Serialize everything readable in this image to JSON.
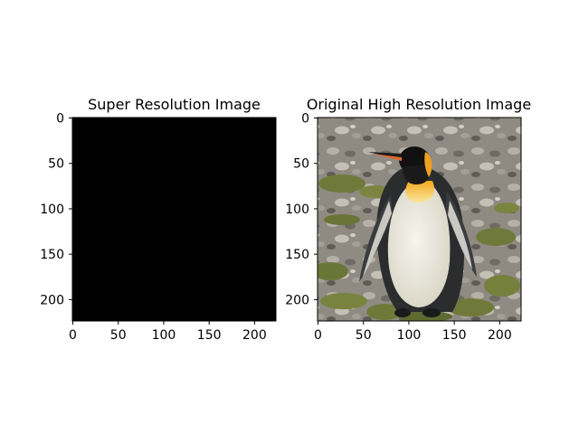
{
  "figure": {
    "background": "#ffffff"
  },
  "chart_data": [
    {
      "type": "image",
      "title": "Super Resolution Image",
      "content": "solid black",
      "fill_color": "#000000",
      "xlim": [
        0,
        224
      ],
      "ylim": [
        224,
        0
      ],
      "x_ticks": [
        0,
        50,
        100,
        150,
        200
      ],
      "y_ticks": [
        0,
        50,
        100,
        150,
        200
      ]
    },
    {
      "type": "image",
      "title": "Original High Resolution Image",
      "content": "photograph of a king penguin standing on rocky ground with grass patches",
      "colors": {
        "rocks": "#9c9890",
        "grass": "#6f7a3a",
        "penguin_back": "#2a2c2e",
        "penguin_belly": "#e8e6dc",
        "penguin_head": "#111111",
        "orange_patch": "#f0a020"
      },
      "xlim": [
        0,
        224
      ],
      "ylim": [
        224,
        0
      ],
      "x_ticks": [
        0,
        50,
        100,
        150,
        200
      ],
      "y_ticks": [
        0,
        50,
        100,
        150,
        200
      ]
    }
  ]
}
